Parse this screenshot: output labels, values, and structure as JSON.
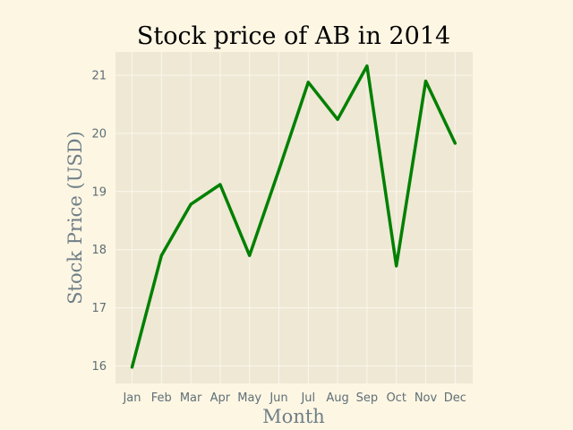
{
  "chart_data": {
    "type": "line",
    "title": "Stock price of AB in 2014",
    "xlabel": "Month",
    "ylabel": "Stock Price (USD)",
    "categories": [
      "Jan",
      "Feb",
      "Mar",
      "Apr",
      "May",
      "Jun",
      "Jul",
      "Aug",
      "Sep",
      "Oct",
      "Nov",
      "Dec"
    ],
    "series": [
      {
        "values": [
          15.98,
          17.9,
          18.78,
          19.12,
          17.9,
          19.37,
          20.88,
          20.24,
          21.16,
          17.72,
          20.9,
          19.83
        ],
        "color": "#008000"
      }
    ],
    "yticks": [
      16,
      17,
      18,
      19,
      20,
      21
    ],
    "ylim": [
      15.7,
      21.4
    ],
    "grid": true,
    "colors": {
      "figure_background": "#fdf6e3",
      "plot_background": "#eee8d5",
      "grid": "#fbf7ec",
      "line": "#008000"
    }
  }
}
